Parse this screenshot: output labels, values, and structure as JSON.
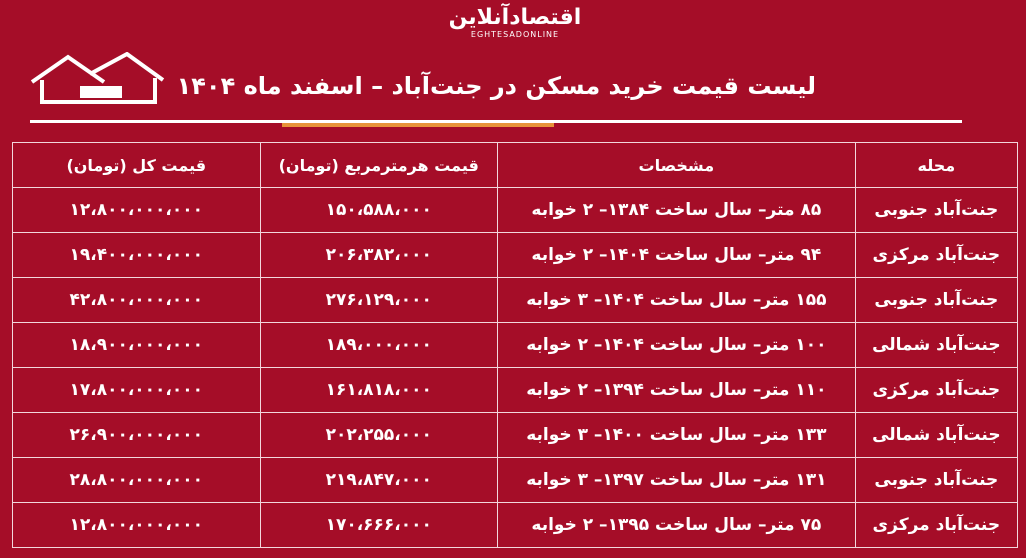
{
  "logo": {
    "fa": "اقتصادآنلاین",
    "en": "EGHTESADONLINE"
  },
  "title": "لیست قیمت خرید مسکن در جنت‌آباد – اسفند ماه ۱۴۰۴",
  "colors": {
    "background": "#a50d28",
    "accent": "#e8933a",
    "text": "#ffffff"
  },
  "table": {
    "headers": [
      "محله",
      "مشخصات",
      "قیمت هرمترمربع (تومان)",
      "قیمت کل (تومان)"
    ],
    "rows": [
      [
        "جنت‌آباد جنوبی",
        "۸۵ متر– سال ساخت ۱۳۸۴– ۲ خوابه",
        "۱۵۰،۵۸۸،۰۰۰",
        "۱۲،۸۰۰،۰۰۰،۰۰۰"
      ],
      [
        "جنت‌آباد مرکزی",
        "۹۴ متر– سال ساخت ۱۴۰۴– ۲ خوابه",
        "۲۰۶،۳۸۲،۰۰۰",
        "۱۹،۴۰۰،۰۰۰،۰۰۰"
      ],
      [
        "جنت‌آباد جنوبی",
        "۱۵۵ متر– سال ساخت ۱۴۰۴– ۳ خوابه",
        "۲۷۶،۱۲۹،۰۰۰",
        "۴۲،۸۰۰،۰۰۰،۰۰۰"
      ],
      [
        "جنت‌آباد شمالی",
        "۱۰۰ متر– سال ساخت ۱۴۰۴– ۲ خوابه",
        "۱۸۹،۰۰۰،۰۰۰",
        "۱۸،۹۰۰،۰۰۰،۰۰۰"
      ],
      [
        "جنت‌آباد مرکزی",
        "۱۱۰ متر– سال ساخت ۱۳۹۴– ۲ خوابه",
        "۱۶۱،۸۱۸،۰۰۰",
        "۱۷،۸۰۰،۰۰۰،۰۰۰"
      ],
      [
        "جنت‌آباد شمالی",
        "۱۳۳ متر– سال ساخت ۱۴۰۰– ۳ خوابه",
        "۲۰۲،۲۵۵،۰۰۰",
        "۲۶،۹۰۰،۰۰۰،۰۰۰"
      ],
      [
        "جنت‌آباد جنوبی",
        "۱۳۱ متر– سال ساخت ۱۳۹۷– ۳ خوابه",
        "۲۱۹،۸۴۷،۰۰۰",
        "۲۸،۸۰۰،۰۰۰،۰۰۰"
      ],
      [
        "جنت‌آباد مرکزی",
        "۷۵ متر– سال ساخت ۱۳۹۵– ۲ خوابه",
        "۱۷۰،۶۶۶،۰۰۰",
        "۱۲،۸۰۰،۰۰۰،۰۰۰"
      ]
    ]
  }
}
